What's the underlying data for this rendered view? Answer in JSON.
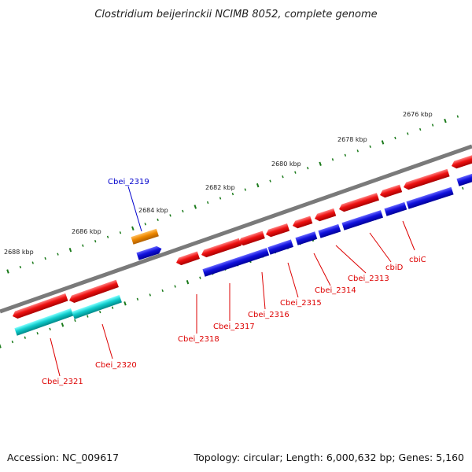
{
  "title": "Clostridium beijerinckii NCIMB 8052, complete genome",
  "footer": {
    "accession": "Accession: NC_009617",
    "summary": "Topology: circular; Length: 6,000,632 bp; Genes: 5,160"
  },
  "scale_ticks": [
    "2676 kbp",
    "2678 kbp",
    "2680 kbp",
    "2682 kbp",
    "2684 kbp",
    "2686 kbp",
    "2688 kbp"
  ],
  "colors": {
    "backbone": "#808080",
    "tick": "#1a7a1a",
    "cds_forward_red": "#ee1111",
    "cds_gene_blue": "#1111dd",
    "cds_orange": "#ee8800",
    "cds_cyan": "#11cccc",
    "label_red": "#dd0000",
    "label_blue": "#0000cc"
  },
  "gene_labels": [
    {
      "text": "Cbei_2319",
      "color": "blue"
    },
    {
      "text": "Cbei_2321",
      "color": "red"
    },
    {
      "text": "Cbei_2320",
      "color": "red"
    },
    {
      "text": "Cbei_2318",
      "color": "red"
    },
    {
      "text": "Cbei_2317",
      "color": "red"
    },
    {
      "text": "Cbei_2316",
      "color": "red"
    },
    {
      "text": "Cbei_2315",
      "color": "red"
    },
    {
      "text": "Cbei_2314",
      "color": "red"
    },
    {
      "text": "Cbei_2313",
      "color": "red"
    },
    {
      "text": "cbiD",
      "color": "red"
    },
    {
      "text": "cbiC",
      "color": "red"
    }
  ]
}
